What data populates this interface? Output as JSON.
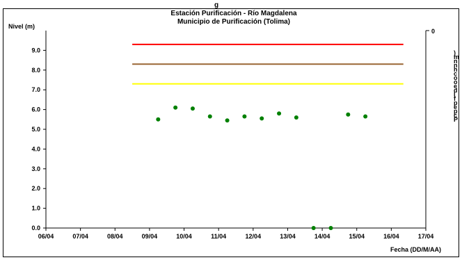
{
  "chart_data": {
    "type": "scatter",
    "title": "Estación Purificación - Río Magdalena",
    "subtitle": "Municipio de Purificación (Tolima)",
    "ylabel": "Nivel (m)",
    "xlabel": "Fecha (DD/M/AA)",
    "top_partial_text": "g",
    "x_ticks": [
      "06/04",
      "07/04",
      "08/04",
      "09/04",
      "10/04",
      "11/04",
      "12/04",
      "13/04",
      "14/04",
      "15/04",
      "16/04",
      "17/04"
    ],
    "y_ticks": [
      "0.0",
      "1.0",
      "2.0",
      "3.0",
      "4.0",
      "5.0",
      "6.0",
      "7.0",
      "8.0",
      "9.0"
    ],
    "ylim": [
      0,
      10
    ],
    "xlim_days": [
      6,
      17
    ],
    "grid": false,
    "secondary_axis_label": "0",
    "right_legend_fragments": [
      ")",
      "m",
      "n",
      "n",
      "h",
      "c",
      "o",
      "o",
      "e",
      "d",
      "I",
      "f",
      "p",
      "e",
      "p",
      "c",
      "P"
    ],
    "threshold_lines": [
      {
        "level": 9.3,
        "color": "#ff0000"
      },
      {
        "level": 8.3,
        "color": "#996633"
      },
      {
        "level": 7.3,
        "color": "#ffff00"
      }
    ],
    "threshold_x_range": [
      "08/04 12:00",
      "16/04 08:00"
    ],
    "threshold_day_range": [
      8.5,
      16.35
    ],
    "series": [
      {
        "color": "#008000",
        "points": [
          {
            "x": "09/04 06:00",
            "day": 9.25,
            "y": 5.5
          },
          {
            "x": "09/04 18:00",
            "day": 9.75,
            "y": 6.1
          },
          {
            "x": "10/04 06:00",
            "day": 10.25,
            "y": 6.05
          },
          {
            "x": "10/04 18:00",
            "day": 10.75,
            "y": 5.65
          },
          {
            "x": "11/04 06:00",
            "day": 11.25,
            "y": 5.45
          },
          {
            "x": "11/04 18:00",
            "day": 11.75,
            "y": 5.65
          },
          {
            "x": "12/04 06:00",
            "day": 12.25,
            "y": 5.55
          },
          {
            "x": "12/04 18:00",
            "day": 12.75,
            "y": 5.8
          },
          {
            "x": "13/04 06:00",
            "day": 13.25,
            "y": 5.6
          },
          {
            "x": "13/04 18:00",
            "day": 13.75,
            "y": 0.0
          },
          {
            "x": "14/04 06:00",
            "day": 14.25,
            "y": 0.0
          },
          {
            "x": "14/04 18:00",
            "day": 14.75,
            "y": 5.75
          },
          {
            "x": "15/04 06:00",
            "day": 15.25,
            "y": 5.65
          }
        ]
      }
    ],
    "colors": {
      "axis": "#000000",
      "marker": "#008000",
      "background": "#ffffff"
    }
  }
}
